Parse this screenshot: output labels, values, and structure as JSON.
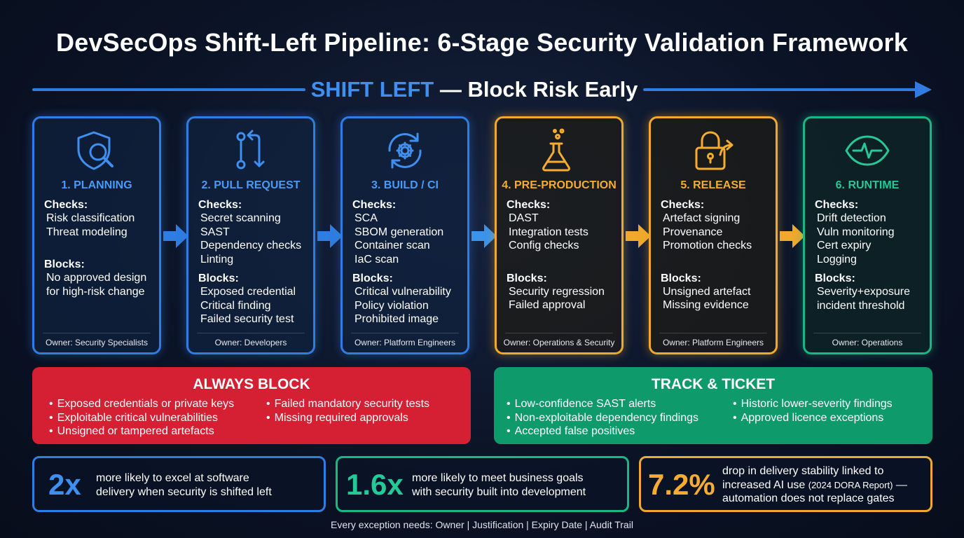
{
  "title": "DevSecOps Shift-Left Pipeline: 6-Stage Security Validation Framework",
  "banner": {
    "highlight": "SHIFT LEFT",
    "rest": "— Block Risk Early"
  },
  "labels": {
    "checks": "Checks:",
    "blocks": "Blocks:"
  },
  "stages": [
    {
      "title": "1. PLANNING",
      "icon": "shield-search-icon",
      "checks": [
        "Risk classification",
        "Threat modeling"
      ],
      "blocks": [
        "No approved design",
        "for high-risk change"
      ],
      "owner": "Owner: Security Specialists"
    },
    {
      "title": "2. PULL REQUEST",
      "icon": "pull-request-icon",
      "checks": [
        "Secret scanning",
        "SAST",
        "Dependency checks",
        "Linting"
      ],
      "blocks": [
        "Exposed credential",
        "Critical finding",
        "Failed security test"
      ],
      "owner": "Owner: Developers"
    },
    {
      "title": "3. BUILD / CI",
      "icon": "gear-refresh-icon",
      "checks": [
        "SCA",
        "SBOM generation",
        "Container scan",
        "IaC scan"
      ],
      "blocks": [
        "Critical vulnerability",
        "Policy violation",
        "Prohibited image"
      ],
      "owner": "Owner: Platform Engineers"
    },
    {
      "title": "4. PRE-PRODUCTION",
      "icon": "flask-icon",
      "checks": [
        "DAST",
        "Integration tests",
        "Config checks"
      ],
      "blocks": [
        "Security regression",
        "Failed approval"
      ],
      "owner": "Owner: Operations & Security"
    },
    {
      "title": "5. RELEASE",
      "icon": "lock-share-icon",
      "checks": [
        "Artefact signing",
        "Provenance",
        "Promotion checks"
      ],
      "blocks": [
        "Unsigned artefact",
        "Missing evidence"
      ],
      "owner": "Owner: Platform Engineers"
    },
    {
      "title": "6. RUNTIME",
      "icon": "eye-pulse-icon",
      "checks": [
        "Drift detection",
        "Vuln monitoring",
        "Cert expiry",
        "Logging"
      ],
      "blocks": [
        "Severity+exposure",
        "incident threshold"
      ],
      "owner": "Owner: Operations"
    }
  ],
  "always_block": {
    "title": "ALWAYS BLOCK",
    "col1": [
      "Exposed credentials or private keys",
      "Exploitable critical vulnerabilities",
      "Unsigned or tampered artefacts"
    ],
    "col2": [
      "Failed mandatory security tests",
      "Missing required approvals"
    ]
  },
  "track_ticket": {
    "title": "TRACK & TICKET",
    "col1": [
      "Low-confidence SAST alerts",
      "Non-exploitable dependency findings",
      "Accepted false positives"
    ],
    "col2": [
      "Historic lower-severity findings",
      "Approved licence exceptions"
    ]
  },
  "stats": [
    {
      "value": "2x",
      "lines": [
        "more likely to excel at software",
        "delivery when security is shifted left"
      ]
    },
    {
      "value": "1.6x",
      "lines": [
        "more likely to meet business goals",
        "with security built into development"
      ]
    },
    {
      "value": "7.2%",
      "line1": "drop in delivery stability linked to",
      "line2_main": "increased AI use ",
      "line2_small": "(2024 DORA Report)",
      "line2_tail": " —",
      "line3": "automation does not replace gates"
    }
  ],
  "footer": "Every exception needs: Owner | Justification | Expiry Date | Audit Trail",
  "colors": {
    "blue": "#2f7de1",
    "amber": "#f0a92c",
    "green": "#17b884",
    "red": "#d51f33",
    "teal": "#0f9a6b"
  }
}
